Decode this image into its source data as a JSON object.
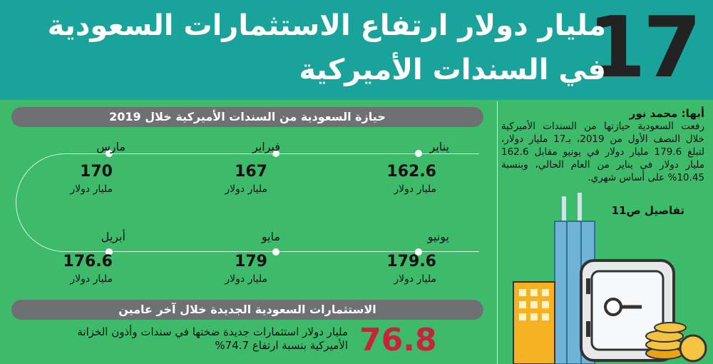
{
  "header": {
    "big_number": "17",
    "title_line1": "مليار دولار ارتفاع الاستثمارات السعودية",
    "title_line2": "في السندات الأميركية"
  },
  "holdings": {
    "heading": "حيازة السعودية من السندات الأميركية خلال 2019",
    "unit": "مليار دولار",
    "months": [
      {
        "name": "يناير",
        "value": "162.6"
      },
      {
        "name": "فبراير",
        "value": "167"
      },
      {
        "name": "مارس",
        "value": "170"
      },
      {
        "name": "يونيو",
        "value": "179.6"
      },
      {
        "name": "مايو",
        "value": "179"
      },
      {
        "name": "أبريل",
        "value": "176.6"
      }
    ]
  },
  "new_investments": {
    "heading": "الاستثمارات السعودية الجديدة خلال آخر عامين",
    "value": "76.8",
    "text": "مليار دولار استثمارات جديدة ضختها في سندات وأذون الخزانة الأميركية بنسبة ارتفاع 74.7%"
  },
  "story": {
    "byline": "أبها: محمد نور",
    "body": "رفعت السعودية حيازتها من السندات الأميركية خلال النصف الأول من 2019، بـ17 مليار دولار، لتبلغ 179.6 مليار دولار في يونيو مقابل 162.6 مليار دولار في يناير من العام الحالي، وبنسبة 10.45% على أساس شهري.",
    "details": "تفاصيل ص11"
  },
  "colors": {
    "background": "#3dbb6a",
    "header": "#1aa39a",
    "pill": "#6e7073",
    "accent_red": "#c8233a"
  }
}
